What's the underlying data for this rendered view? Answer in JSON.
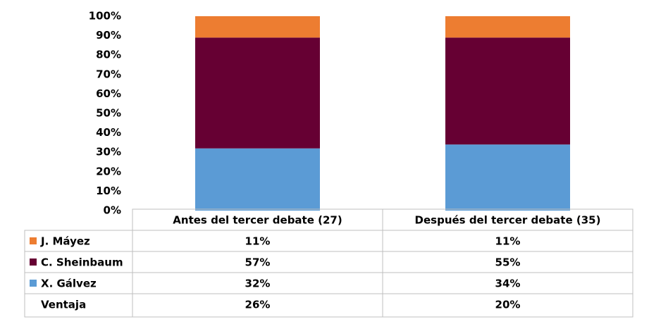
{
  "chart_data": {
    "type": "stacked_bar",
    "categories": [
      "Antes del tercer debate (27)",
      "Después del tercer debate (35)"
    ],
    "series": [
      {
        "name": "X. Gálvez",
        "color": "#5b9bd5",
        "values": [
          32,
          34
        ],
        "value_labels": [
          "32%",
          "34%"
        ]
      },
      {
        "name": "C. Sheinbaum",
        "color": "#660033",
        "values": [
          57,
          55
        ],
        "value_labels": [
          "57%",
          "55%"
        ]
      },
      {
        "name": "J. Máyez",
        "color": "#ed7d31",
        "values": [
          11,
          11
        ],
        "value_labels": [
          "11%",
          "11%"
        ]
      }
    ],
    "advantage": {
      "name": "Ventaja",
      "values": [
        26,
        20
      ],
      "value_labels": [
        "26%",
        "20%"
      ]
    },
    "ylim": [
      0,
      100
    ],
    "yticks": [
      {
        "value": 0,
        "label": "0%"
      },
      {
        "value": 10,
        "label": "10%"
      },
      {
        "value": 20,
        "label": "20%"
      },
      {
        "value": 30,
        "label": "30%"
      },
      {
        "value": 40,
        "label": "40%"
      },
      {
        "value": 50,
        "label": "50%"
      },
      {
        "value": 60,
        "label": "60%"
      },
      {
        "value": 70,
        "label": "70%"
      },
      {
        "value": 80,
        "label": "80%"
      },
      {
        "value": 90,
        "label": "90%"
      },
      {
        "value": 100,
        "label": "100%"
      }
    ],
    "grid": false
  }
}
